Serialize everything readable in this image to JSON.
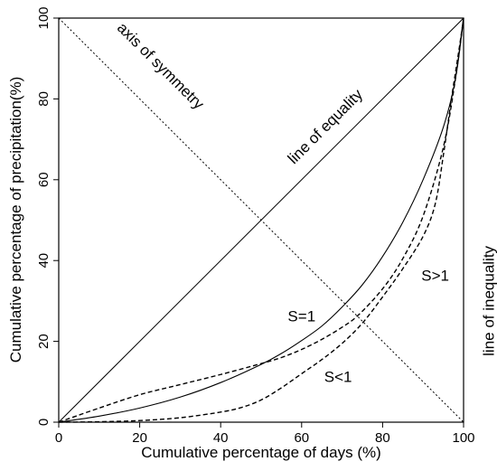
{
  "chart_data": {
    "type": "line",
    "title": "",
    "xlabel": "Cumulative percentage of days (%)",
    "ylabel": "Cumulative percentage of precipitation(%)",
    "xlim": [
      0,
      100
    ],
    "ylim": [
      0,
      100
    ],
    "xticks": [
      0,
      20,
      40,
      60,
      80,
      100
    ],
    "yticks": [
      0,
      20,
      40,
      60,
      80,
      100
    ],
    "grid": false,
    "legend": "none",
    "series": [
      {
        "key": "equality",
        "style": "solid-thin",
        "x": [
          0,
          100
        ],
        "y": [
          0,
          100
        ]
      },
      {
        "key": "symmetry",
        "style": "dotted",
        "x": [
          0,
          100
        ],
        "y": [
          100,
          0
        ]
      },
      {
        "key": "s_equal_1",
        "style": "solid",
        "x": [
          0,
          10,
          20,
          30,
          40,
          50,
          55,
          60,
          65,
          70,
          75,
          80,
          85,
          90,
          95,
          98,
          100
        ],
        "y": [
          0,
          1.5,
          3.5,
          6.2,
          9.8,
          14.3,
          17,
          20.2,
          23.8,
          28.5,
          34,
          41,
          49.5,
          60,
          73,
          85,
          100
        ]
      },
      {
        "key": "s_less_1",
        "style": "dashed",
        "x": [
          0,
          10,
          20,
          30,
          40,
          50,
          55,
          60,
          65,
          70,
          74,
          80,
          85,
          90,
          95,
          98,
          100
        ],
        "y": [
          0,
          3.5,
          6.8,
          9.3,
          11.8,
          14.5,
          16,
          18,
          20.5,
          23.5,
          26.5,
          33,
          40.5,
          51,
          68,
          85,
          100
        ]
      },
      {
        "key": "s_greater_1",
        "style": "dashed",
        "x": [
          0,
          10,
          20,
          30,
          40,
          45,
          50,
          55,
          60,
          65,
          70,
          75,
          80,
          85,
          90,
          93,
          95,
          97,
          99,
          100
        ],
        "y": [
          0,
          0.1,
          0.4,
          1.1,
          2.5,
          3.6,
          5.5,
          8.5,
          12,
          15.5,
          19.5,
          24.5,
          31,
          38,
          46,
          54,
          66,
          80,
          93,
          100
        ]
      }
    ],
    "annotations": [
      {
        "text": "axis of symmetry",
        "x": 25,
        "y": 88,
        "rotate": 45
      },
      {
        "text": "line of equality",
        "x": 66,
        "y": 73,
        "rotate": -45
      },
      {
        "text": "S=1",
        "x": 60,
        "y": 26,
        "rotate": 0
      },
      {
        "text": "S<1",
        "x": 69,
        "y": 11,
        "rotate": 0
      },
      {
        "text": "S>1",
        "x": 93,
        "y": 36,
        "rotate": 0
      },
      {
        "text": "line of inequality",
        "x": 106.5,
        "y": 30,
        "rotate": -90
      }
    ]
  }
}
